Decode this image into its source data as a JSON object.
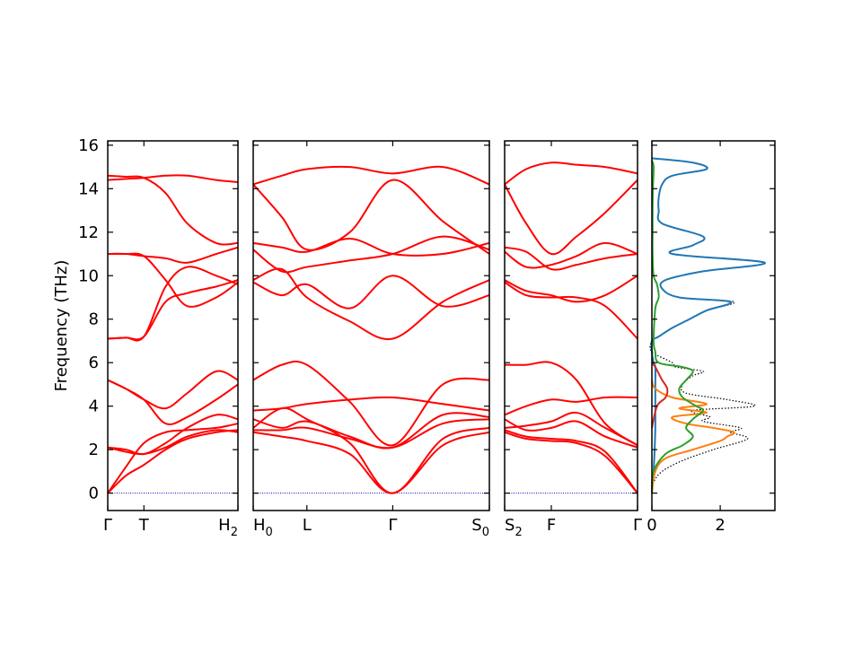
{
  "chart_data": {
    "type": "line",
    "ylabel": "Frequency (THz)",
    "ylim": [
      -0.8,
      16.2
    ],
    "yticks": [
      0,
      2,
      4,
      6,
      8,
      10,
      12,
      14,
      16
    ],
    "band_color": "#ff0000",
    "zero_line_color": "#0000cc",
    "panels": [
      {
        "x_range": [
          0,
          3.6
        ],
        "ticks": [
          {
            "x": 0,
            "label": "Γ"
          },
          {
            "x": 1.0,
            "label": "T"
          },
          {
            "x": 3.6,
            "label": "H",
            "sub": "2"
          }
        ],
        "branches": [
          {
            "x": [
              0,
              0.5,
              1.0,
              1.6,
              2.2,
              3.0,
              3.6
            ],
            "y": [
              0,
              1.2,
              2.3,
              2.8,
              2.9,
              3.0,
              3.2
            ]
          },
          {
            "x": [
              0,
              0.5,
              1.0,
              1.6,
              2.2,
              3.0,
              3.6
            ],
            "y": [
              0,
              0.8,
              1.3,
              2.0,
              2.5,
              2.8,
              2.9
            ]
          },
          {
            "x": [
              0,
              0.5,
              1.0,
              1.6,
              2.2,
              3.0,
              3.6
            ],
            "y": [
              2.1,
              2.0,
              1.8,
              2.3,
              3.0,
              3.6,
              3.4
            ]
          },
          {
            "x": [
              0,
              0.5,
              1.0,
              1.6,
              2.2,
              3.0,
              3.6
            ],
            "y": [
              2.1,
              1.9,
              1.8,
              2.1,
              2.6,
              2.9,
              2.8
            ]
          },
          {
            "x": [
              0,
              0.5,
              1.0,
              1.6,
              2.2,
              3.0,
              3.6
            ],
            "y": [
              5.2,
              4.8,
              4.3,
              3.9,
              4.6,
              5.6,
              5.2
            ]
          },
          {
            "x": [
              0,
              0.5,
              1.0,
              1.6,
              2.2,
              3.0,
              3.6
            ],
            "y": [
              5.2,
              4.8,
              4.3,
              3.2,
              3.5,
              4.3,
              5.0
            ]
          },
          {
            "x": [
              0,
              0.5,
              1.0,
              1.6,
              2.2,
              3.0,
              3.6
            ],
            "y": [
              7.1,
              7.15,
              7.2,
              9.5,
              10.4,
              10.0,
              9.6
            ]
          },
          {
            "x": [
              0,
              0.5,
              1.0,
              1.6,
              2.2,
              3.0,
              3.6
            ],
            "y": [
              7.1,
              7.15,
              7.2,
              8.8,
              9.2,
              9.5,
              9.8
            ]
          },
          {
            "x": [
              0,
              0.5,
              1.0,
              1.6,
              2.2,
              3.0,
              3.6
            ],
            "y": [
              11.0,
              11.0,
              10.9,
              9.8,
              8.6,
              9.0,
              9.7
            ]
          },
          {
            "x": [
              0,
              0.5,
              1.0,
              1.6,
              2.2,
              3.0,
              3.6
            ],
            "y": [
              11.0,
              11.0,
              10.9,
              10.8,
              10.6,
              11.0,
              11.3
            ]
          },
          {
            "x": [
              0,
              0.5,
              1.0,
              1.6,
              2.2,
              3.0,
              3.6
            ],
            "y": [
              14.6,
              14.55,
              14.5,
              13.8,
              12.4,
              11.5,
              11.5
            ]
          },
          {
            "x": [
              0,
              0.5,
              1.0,
              1.6,
              2.2,
              3.0,
              3.6
            ],
            "y": [
              14.4,
              14.45,
              14.5,
              14.6,
              14.6,
              14.4,
              14.3
            ]
          }
        ]
      },
      {
        "x_range": [
          0,
          6.6
        ],
        "ticks": [
          {
            "x": 0,
            "label": "H",
            "sub": "0"
          },
          {
            "x": 1.5,
            "label": "L"
          },
          {
            "x": 3.9,
            "label": "Γ"
          },
          {
            "x": 6.6,
            "label": "S",
            "sub": "0"
          }
        ],
        "branches": [
          {
            "x": [
              0,
              0.8,
              1.5,
              2.7,
              3.9,
              5.3,
              6.6
            ],
            "y": [
              3.0,
              3.9,
              3.4,
              2.3,
              0,
              2.5,
              3.0
            ]
          },
          {
            "x": [
              0,
              0.8,
              1.5,
              2.7,
              3.9,
              5.3,
              6.6
            ],
            "y": [
              2.8,
              2.6,
              2.4,
              1.8,
              0,
              2.2,
              2.8
            ]
          },
          {
            "x": [
              0,
              0.8,
              1.5,
              2.7,
              3.9,
              5.3,
              6.6
            ],
            "y": [
              3.4,
              3.0,
              3.3,
              2.6,
              2.1,
              3.6,
              3.5
            ]
          },
          {
            "x": [
              0,
              0.8,
              1.5,
              2.7,
              3.9,
              5.3,
              6.6
            ],
            "y": [
              2.9,
              2.9,
              3.0,
              2.5,
              2.1,
              3.2,
              3.4
            ]
          },
          {
            "x": [
              0,
              0.8,
              1.5,
              2.7,
              3.9,
              5.3,
              6.6
            ],
            "y": [
              5.2,
              5.9,
              5.9,
              4.2,
              2.2,
              5.0,
              5.2
            ]
          },
          {
            "x": [
              0,
              0.8,
              1.5,
              2.7,
              3.9,
              5.3,
              6.6
            ],
            "y": [
              3.8,
              3.9,
              4.1,
              4.3,
              4.4,
              4.1,
              3.8
            ]
          },
          {
            "x": [
              0,
              0.8,
              1.5,
              2.7,
              3.9,
              5.3,
              6.6
            ],
            "y": [
              9.7,
              9.1,
              9.6,
              8.5,
              10.0,
              8.6,
              9.1
            ]
          },
          {
            "x": [
              0,
              0.8,
              1.5,
              2.7,
              3.9,
              5.3,
              6.6
            ],
            "y": [
              9.8,
              10.3,
              9.0,
              7.9,
              7.1,
              8.8,
              9.8
            ]
          },
          {
            "x": [
              0,
              0.8,
              1.5,
              2.7,
              3.9,
              5.3,
              6.6
            ],
            "y": [
              11.5,
              11.3,
              11.1,
              11.7,
              11.0,
              11.0,
              11.5
            ]
          },
          {
            "x": [
              0,
              0.8,
              1.5,
              2.7,
              3.9,
              5.3,
              6.6
            ],
            "y": [
              11.2,
              10.2,
              10.4,
              10.7,
              11.0,
              11.8,
              11.2
            ]
          },
          {
            "x": [
              0,
              0.8,
              1.5,
              2.7,
              3.9,
              5.3,
              6.6
            ],
            "y": [
              14.2,
              12.7,
              11.2,
              12.0,
              14.4,
              12.5,
              11.0
            ]
          },
          {
            "x": [
              0,
              0.8,
              1.5,
              2.7,
              3.9,
              5.3,
              6.6
            ],
            "y": [
              14.2,
              14.6,
              14.9,
              15.0,
              14.7,
              15.0,
              14.2
            ]
          }
        ]
      },
      {
        "x_range": [
          0,
          3.7
        ],
        "ticks": [
          {
            "x": 0,
            "label": "S",
            "sub": "2"
          },
          {
            "x": 1.3,
            "label": "F"
          },
          {
            "x": 3.7,
            "label": "Γ"
          }
        ],
        "branches": [
          {
            "x": [
              0,
              0.6,
              1.3,
              2.0,
              2.8,
              3.7
            ],
            "y": [
              2.8,
              2.5,
              2.4,
              2.3,
              1.7,
              0
            ]
          },
          {
            "x": [
              0,
              0.6,
              1.3,
              2.0,
              2.8,
              3.7
            ],
            "y": [
              2.9,
              2.6,
              2.5,
              2.4,
              1.9,
              0
            ]
          },
          {
            "x": [
              0,
              0.6,
              1.3,
              2.0,
              2.8,
              3.7
            ],
            "y": [
              3.4,
              2.9,
              3.0,
              3.3,
              2.6,
              2.1
            ]
          },
          {
            "x": [
              0,
              0.6,
              1.3,
              2.0,
              2.8,
              3.7
            ],
            "y": [
              3.0,
              3.1,
              3.3,
              3.7,
              3.0,
              2.2
            ]
          },
          {
            "x": [
              0,
              0.6,
              1.3,
              2.0,
              2.8,
              3.7
            ],
            "y": [
              5.9,
              5.9,
              6.0,
              5.2,
              3.2,
              2.2
            ]
          },
          {
            "x": [
              0,
              0.6,
              1.3,
              2.0,
              2.8,
              3.7
            ],
            "y": [
              3.6,
              4.0,
              4.3,
              4.2,
              4.4,
              4.4
            ]
          },
          {
            "x": [
              0,
              0.6,
              1.3,
              2.0,
              2.8,
              3.7
            ],
            "y": [
              9.7,
              9.1,
              9.0,
              9.0,
              8.6,
              7.1
            ]
          },
          {
            "x": [
              0,
              0.6,
              1.3,
              2.0,
              2.8,
              3.7
            ],
            "y": [
              9.8,
              9.3,
              9.1,
              8.8,
              9.1,
              10.0
            ]
          },
          {
            "x": [
              0,
              0.6,
              1.3,
              2.0,
              2.8,
              3.7
            ],
            "y": [
              11.3,
              11.1,
              10.3,
              10.5,
              10.8,
              11.0
            ]
          },
          {
            "x": [
              0,
              0.6,
              1.3,
              2.0,
              2.8,
              3.7
            ],
            "y": [
              11.1,
              10.4,
              10.5,
              10.9,
              11.5,
              11.0
            ]
          },
          {
            "x": [
              0,
              0.6,
              1.3,
              2.0,
              2.8,
              3.7
            ],
            "y": [
              14.2,
              12.4,
              11.0,
              11.8,
              12.9,
              14.4
            ]
          },
          {
            "x": [
              0,
              0.6,
              1.3,
              2.0,
              2.8,
              3.7
            ],
            "y": [
              14.2,
              14.9,
              15.2,
              15.1,
              15.0,
              14.7
            ]
          }
        ]
      }
    ],
    "dos": {
      "xlim": [
        0,
        3.6
      ],
      "xticks": [
        0,
        2
      ],
      "series": [
        {
          "color": "#000000",
          "style": "dotted",
          "y": [
            0,
            0.5,
            1.0,
            1.5,
            2.0,
            2.5,
            2.8,
            3.0,
            3.3,
            3.5,
            3.8,
            4.0,
            4.3,
            4.6,
            5.0,
            5.4,
            5.6,
            5.8,
            6.0,
            6.5,
            7.0,
            7.2,
            7.6,
            8.0,
            8.4,
            8.8,
            9.0,
            9.4,
            9.8,
            10.2,
            10.6,
            11.0,
            11.4,
            11.8,
            12.4,
            13.0,
            13.6,
            14.2,
            14.6,
            14.9,
            15.2,
            15.4
          ],
          "d": [
            0,
            0.05,
            0.3,
            0.9,
            1.8,
            2.8,
            2.3,
            2.6,
            1.5,
            1.7,
            1.2,
            3.0,
            2.2,
            1.0,
            0.9,
            1.2,
            1.5,
            0.7,
            0.6,
            0,
            0,
            0.2,
            0.6,
            1.1,
            1.6,
            2.4,
            0.8,
            0.3,
            0.4,
            1.5,
            3.3,
            0.6,
            1.2,
            1.5,
            0.3,
            0.2,
            0.2,
            0.3,
            0.6,
            1.6,
            1.2,
            0
          ]
        },
        {
          "color": "#1f77b4",
          "style": "solid",
          "y": [
            0,
            0.5,
            1.0,
            2.0,
            3.0,
            4.0,
            5.0,
            5.8,
            6.0,
            6.5,
            7.0,
            7.2,
            7.6,
            8.0,
            8.4,
            8.8,
            9.0,
            9.4,
            9.8,
            10.2,
            10.6,
            11.0,
            11.4,
            11.8,
            12.4,
            13.0,
            13.6,
            14.2,
            14.6,
            14.9,
            15.2,
            15.4
          ],
          "d": [
            0,
            0.02,
            0.05,
            0.08,
            0.1,
            0.1,
            0.1,
            0.1,
            0.05,
            0,
            0,
            0.2,
            0.6,
            1.1,
            1.6,
            2.3,
            0.8,
            0.3,
            0.4,
            1.5,
            3.3,
            0.6,
            1.2,
            1.5,
            0.3,
            0.2,
            0.2,
            0.3,
            0.6,
            1.6,
            1.2,
            0
          ]
        },
        {
          "color": "#ff7f0e",
          "style": "solid",
          "y": [
            0,
            1.0,
            1.6,
            2.0,
            2.4,
            2.6,
            2.8,
            3.0,
            3.2,
            3.5,
            3.7,
            3.9,
            4.1,
            4.4,
            4.8,
            5.2
          ],
          "d": [
            0,
            0.1,
            0.4,
            1.2,
            2.0,
            2.2,
            2.4,
            1.8,
            1.0,
            0.6,
            1.6,
            0.8,
            1.6,
            0.6,
            0.1,
            0
          ]
        },
        {
          "color": "#2ca02c",
          "style": "solid",
          "y": [
            0,
            1.0,
            1.8,
            2.2,
            2.6,
            3.0,
            3.4,
            3.8,
            4.0,
            4.4,
            4.8,
            5.2,
            5.6,
            5.8,
            6.0,
            6.5,
            7.0,
            8.5,
            9.0,
            9.6,
            10.0,
            11.0,
            12.0,
            13.0,
            14.0,
            15.0,
            15.3
          ],
          "d": [
            0,
            0.05,
            0.4,
            0.9,
            1.2,
            1.0,
            1.2,
            1.5,
            1.3,
            0.9,
            0.8,
            1.0,
            1.2,
            0.9,
            0.2,
            0.1,
            0.05,
            0.1,
            0.2,
            0.15,
            0.05,
            0.02,
            0.02,
            0.02,
            0.03,
            0.05,
            0
          ]
        },
        {
          "color": "#d62728",
          "style": "solid",
          "y": [
            3.0,
            4.0,
            4.4,
            4.8,
            5.2,
            5.5,
            5.8,
            6.0
          ],
          "d": [
            0,
            0.15,
            0.4,
            0.45,
            0.3,
            0.2,
            0.1,
            0
          ]
        }
      ]
    }
  }
}
